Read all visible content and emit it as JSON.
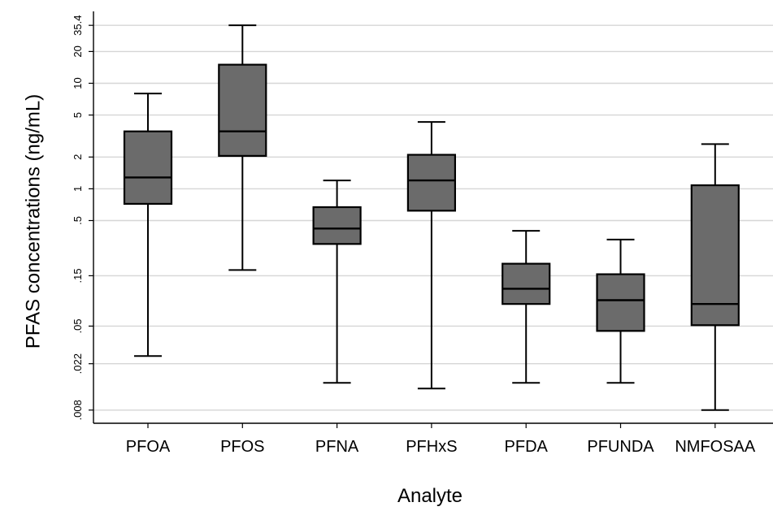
{
  "chart_data": {
    "type": "box",
    "xlabel": "Analyte",
    "ylabel": "PFAS concentrations (ng/mL)",
    "y_scale": "log",
    "ylim": [
      0.006,
      48
    ],
    "y_ticks": [
      {
        "value": 0.008,
        "label": ".008"
      },
      {
        "value": 0.022,
        "label": ".022"
      },
      {
        "value": 0.05,
        "label": ".05"
      },
      {
        "value": 0.15,
        "label": ".15"
      },
      {
        "value": 0.5,
        "label": ".5"
      },
      {
        "value": 1,
        "label": "1"
      },
      {
        "value": 2,
        "label": "2"
      },
      {
        "value": 5,
        "label": "5"
      },
      {
        "value": 10,
        "label": "10"
      },
      {
        "value": 20,
        "label": "20"
      },
      {
        "value": 35.4,
        "label": "35.4"
      }
    ],
    "grid": true,
    "colors": {
      "box_fill": "#6b6b6b",
      "grid": "#d6d6d6",
      "line": "#000000"
    },
    "categories": [
      "PFOA",
      "PFOS",
      "PFNA",
      "PFHxS",
      "PFDA",
      "PFUNDA",
      "NMFOSAA"
    ],
    "boxes": [
      {
        "name": "PFOA",
        "min": 0.026,
        "q1": 0.72,
        "median": 1.28,
        "q3": 3.5,
        "max": 8.0
      },
      {
        "name": "PFOS",
        "min": 0.17,
        "q1": 2.05,
        "median": 3.5,
        "q3": 15.0,
        "max": 35.4
      },
      {
        "name": "PFNA",
        "min": 0.0145,
        "q1": 0.3,
        "median": 0.42,
        "q3": 0.67,
        "max": 1.2
      },
      {
        "name": "PFHxS",
        "min": 0.0128,
        "q1": 0.62,
        "median": 1.2,
        "q3": 2.1,
        "max": 4.3
      },
      {
        "name": "PFDA",
        "min": 0.0145,
        "q1": 0.081,
        "median": 0.113,
        "q3": 0.195,
        "max": 0.4
      },
      {
        "name": "PFUNDA",
        "min": 0.0145,
        "q1": 0.045,
        "median": 0.088,
        "q3": 0.155,
        "max": 0.33
      },
      {
        "name": "NMFOSAA",
        "min": 0.008,
        "q1": 0.051,
        "median": 0.081,
        "q3": 1.08,
        "max": 2.65
      }
    ]
  }
}
